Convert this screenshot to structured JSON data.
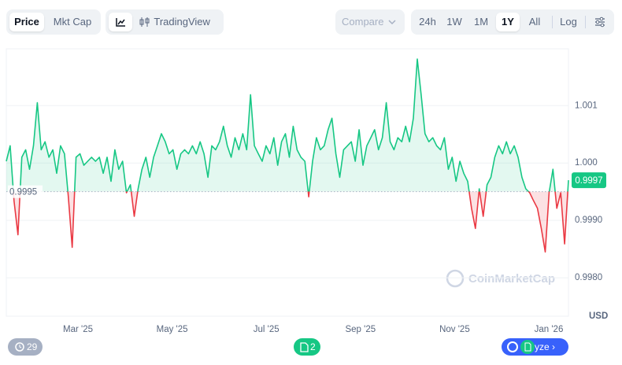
{
  "toolbar": {
    "views": [
      "Price",
      "Mkt Cap"
    ],
    "selected_view": 0,
    "tradingview": "TradingView",
    "compare": "Compare",
    "ranges": [
      "24h",
      "1W",
      "1M",
      "1Y",
      "All"
    ],
    "selected_range": 3,
    "log": "Log"
  },
  "chart_data": {
    "type": "line",
    "values": [
      1.00003,
      1.0003,
      0.99934,
      0.99875,
      1.0001,
      1.00023,
      0.99989,
      1.0003,
      1.00105,
      1.00023,
      1.00037,
      1.0001,
      1.00023,
      0.99982,
      1.0003,
      1.00016,
      0.99941,
      0.99853,
      1.0001,
      1.00016,
      0.99996,
      1.00003,
      1.0001,
      1.00003,
      1.0001,
      0.99982,
      1.0001,
      0.99968,
      1.00023,
      0.99989,
      1.00003,
      0.99948,
      0.99962,
      0.99907,
      0.99955,
      0.99989,
      1.0001,
      0.99975,
      1.0001,
      1.0003,
      1.00051,
      1.00037,
      1.00016,
      1.00023,
      0.99989,
      1.00016,
      1.00023,
      1.00016,
      1.0003,
      1.00016,
      1.00037,
      1.00016,
      0.99975,
      1.0003,
      1.00023,
      1.00037,
      1.00064,
      1.0003,
      1.0001,
      1.00044,
      1.00023,
      1.00051,
      1.00023,
      1.00119,
      1.0003,
      1.00016,
      1.00003,
      1.0003,
      1.00016,
      1.00044,
      0.99996,
      1.00037,
      1.00051,
      1.0001,
      1.00064,
      1.00023,
      1.0001,
      1.00003,
      0.99941,
      1.00003,
      1.00044,
      1.00023,
      1.0003,
      1.00058,
      1.00078,
      1.00016,
      0.99975,
      1.00023,
      1.0003,
      1.00037,
      1.00003,
      1.00058,
      0.99996,
      1.0003,
      1.00044,
      1.00058,
      1.00023,
      1.00044,
      1.00105,
      1.00037,
      1.00023,
      1.00044,
      1.00037,
      1.00064,
      1.00037,
      1.00078,
      1.00181,
      1.00119,
      1.00051,
      1.00037,
      1.00044,
      1.0003,
      1.00023,
      1.00044,
      0.99989,
      1.0001,
      0.99968,
      1.00003,
      0.99982,
      0.99968,
      0.99921,
      0.99886,
      0.99955,
      0.99907,
      0.99962,
      0.99975,
      1.0001,
      1.0003,
      1.00016,
      1.00037,
      1.00016,
      1.0003,
      1.0001,
      0.99975,
      0.99955,
      0.99948,
      0.99934,
      0.99921,
      0.99886,
      0.99845,
      0.99948,
      0.99989,
      0.99921,
      0.99948,
      0.99859,
      0.9997
    ],
    "baseline": 0.9995,
    "last_value": 0.9997,
    "above_color": "#16c784",
    "below_color": "#ea3943",
    "ylim": [
      0.99733,
      1.00199
    ],
    "yticks": [
      {
        "value": 0.998,
        "label": "0.9980"
      },
      {
        "value": 0.999,
        "label": "0.9990"
      },
      {
        "value": 1,
        "label": "1.000"
      },
      1.001
    ],
    "grid": true,
    "x_tick_labels": [
      "Mar '25",
      "May '25",
      "Jul '25",
      "Sep '25",
      "Nov '25",
      "Jan '26"
    ],
    "currency": "USD",
    "watermark": "CoinMarketCap"
  },
  "footer": {
    "events": "29",
    "notes": "2",
    "analyze": "yze"
  }
}
